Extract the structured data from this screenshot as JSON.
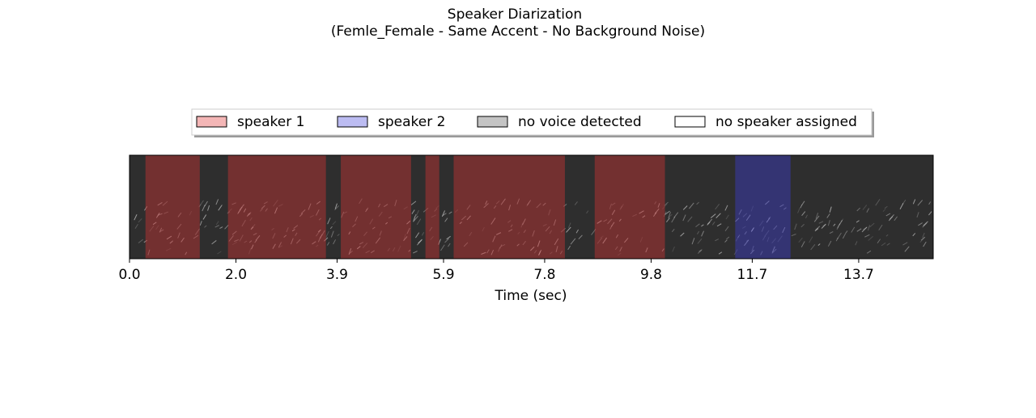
{
  "chart_data": {
    "type": "timeline",
    "title": "Speaker Diarization",
    "subtitle": "(Femle_Female - Same Accent - No Background Noise)",
    "xlabel": "Time  (sec)",
    "xlim": [
      0,
      15.1
    ],
    "xticks": [
      {
        "value": 0,
        "label": "0.0"
      },
      {
        "value": 2,
        "label": "2.0"
      },
      3.9,
      5.9,
      7.8,
      9.8,
      11.7,
      13.7
    ],
    "series": [
      {
        "name": "speaker 1",
        "color": "#f4b6b6",
        "overlay": "#c83232",
        "segments": [
          [
            0.3,
            1.32
          ],
          [
            1.85,
            3.69
          ],
          [
            3.97,
            5.29
          ],
          [
            5.56,
            5.82
          ],
          [
            6.09,
            8.18
          ],
          [
            8.74,
            10.06
          ]
        ]
      },
      {
        "name": "speaker 2",
        "color": "#bcbcf2",
        "overlay": "#3c3cc8",
        "segments": [
          [
            11.38,
            12.42
          ]
        ]
      },
      {
        "name": "no voice detected",
        "color": "#c4c4c4",
        "overlay": "#808080",
        "segments": []
      },
      {
        "name": "no speaker assigned",
        "color": "#ffffff",
        "overlay": "#ffffff",
        "segments": []
      }
    ],
    "legend": "top"
  }
}
